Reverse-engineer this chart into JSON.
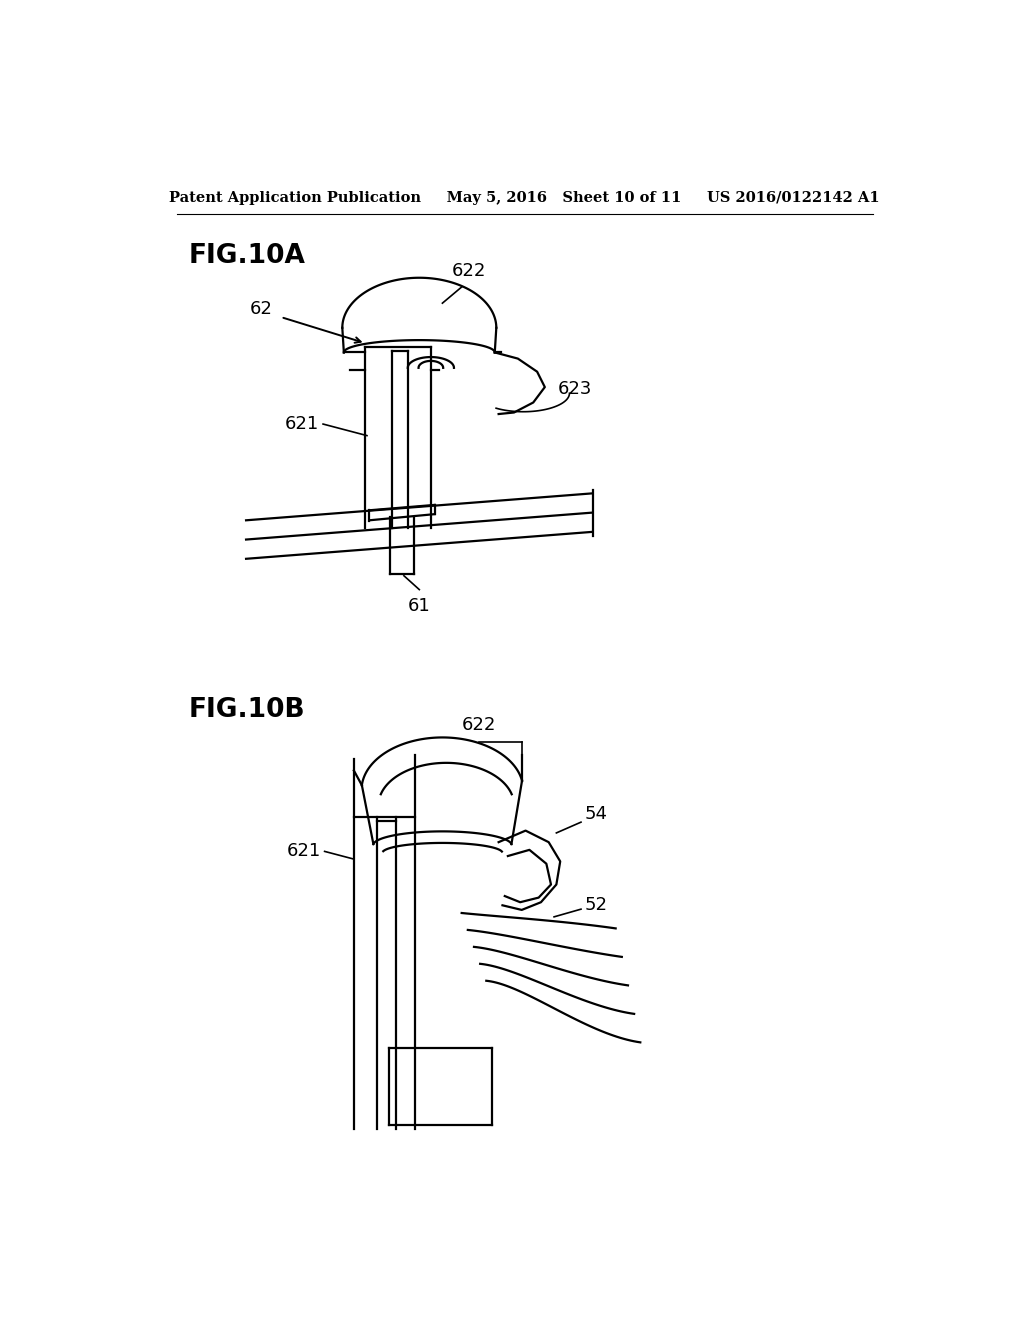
{
  "background_color": "#ffffff",
  "header": "Patent Application Publication     May 5, 2016   Sheet 10 of 11     US 2016/0122142 A1",
  "fig10a_label": "FIG.10A",
  "fig10b_label": "FIG.10B",
  "line_color": "#000000",
  "line_width": 1.6,
  "text_color": "#000000",
  "fontsize_label": 13,
  "fontsize_header": 10.5,
  "fontsize_fig": 19
}
